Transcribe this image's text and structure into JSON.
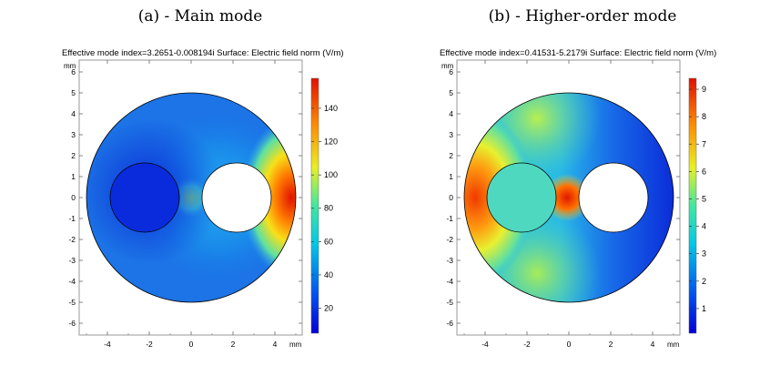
{
  "panels": [
    {
      "title": "(a) - Main mode",
      "header": "Effective mode index=3.2651-0.008194i   Surface: Electric field norm (V/m)",
      "axis_unit": "mm",
      "colorbar": {
        "ticks": [
          20,
          40,
          60,
          80,
          100,
          120,
          140
        ],
        "min": 5,
        "max": 158
      }
    },
    {
      "title": "(b) - Higher-order mode",
      "header": "Effective mode index=0.41531-5.2179i   Surface: Electric field norm (V/m)",
      "axis_unit": "mm",
      "colorbar": {
        "ticks": [
          1,
          2,
          3,
          4,
          5,
          6,
          7,
          8,
          9
        ],
        "min": 0.1,
        "max": 9.4
      }
    }
  ],
  "chart_data": [
    {
      "type": "heatmap",
      "title": "(a) - Main mode",
      "xlabel": "mm",
      "ylabel": "mm",
      "x_ticks": [
        -4,
        -2,
        0,
        2,
        4
      ],
      "y_ticks": [
        -6,
        -5,
        -4,
        -3,
        -2,
        -1,
        0,
        1,
        2,
        3,
        4,
        5,
        6
      ],
      "xlim": [
        -5.3,
        5.3
      ],
      "ylim": [
        -6.6,
        6.6
      ],
      "colorbar_ticks": [
        20,
        40,
        60,
        80,
        100,
        120,
        140
      ],
      "geometry": {
        "outer_radius": 5,
        "hole_radius": 1.65,
        "left_hole_center": [
          -2.2,
          0
        ],
        "right_hole_center": [
          2.2,
          0
        ]
      }
    },
    {
      "type": "heatmap",
      "title": "(b) - Higher-order mode",
      "xlabel": "mm",
      "ylabel": "mm",
      "x_ticks": [
        -4,
        -2,
        0,
        2,
        4
      ],
      "y_ticks": [
        -6,
        -5,
        -4,
        -3,
        -2,
        -1,
        0,
        1,
        2,
        3,
        4,
        5,
        6
      ],
      "xlim": [
        -5.3,
        5.3
      ],
      "ylim": [
        -6.6,
        6.6
      ],
      "colorbar_ticks": [
        1,
        2,
        3,
        4,
        5,
        6,
        7,
        8,
        9
      ],
      "geometry": {
        "outer_radius": 5,
        "hole_radius": 1.65,
        "left_hole_center": [
          -2.2,
          0
        ],
        "right_hole_center": [
          2.2,
          0
        ]
      }
    }
  ]
}
